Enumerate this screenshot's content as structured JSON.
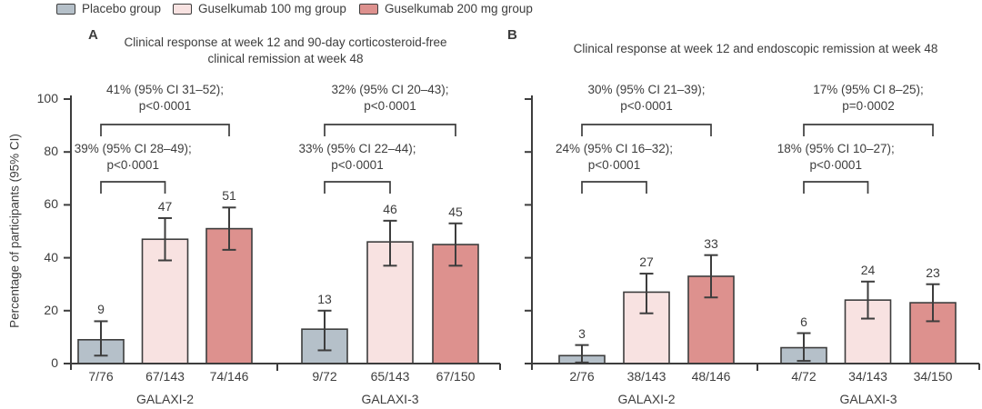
{
  "legend": [
    {
      "label": "Placebo group",
      "color": "#b5c0c9"
    },
    {
      "label": "Guselkumab 100 mg group",
      "color": "#f8e2e1"
    },
    {
      "label": "Guselkumab 200 mg group",
      "color": "#dd918e"
    }
  ],
  "ylabel": "Percentage of participants (95% CI)",
  "ink_color": "#3d3d3d",
  "chart_data": [
    {
      "panel": "A",
      "type": "bar",
      "title": "Clinical response at week 12 and 90-day corticosteroid-free clinical remission at week 48",
      "title_lines": [
        "Clinical response at week 12 and 90-day corticosteroid-free",
        "clinical remission at week 48"
      ],
      "ylim": [
        0,
        100
      ],
      "yticks": [
        0,
        20,
        40,
        60,
        80,
        100
      ],
      "series_names": [
        "Placebo group",
        "Guselkumab 100 mg group",
        "Guselkumab 200 mg group"
      ],
      "groups": [
        {
          "name": "GALAXI-2",
          "bars": [
            {
              "series": "Placebo group",
              "value": 9,
              "ci": [
                3,
                16
              ],
              "n": "7/76"
            },
            {
              "series": "Guselkumab 100 mg group",
              "value": 47,
              "ci": [
                39,
                55
              ],
              "n": "67/143"
            },
            {
              "series": "Guselkumab 200 mg group",
              "value": 51,
              "ci": [
                43,
                59
              ],
              "n": "74/146"
            }
          ],
          "comparisons": [
            {
              "label": "39% (95% CI 28–49);",
              "p": "p<0·0001",
              "from": 0,
              "to": 1,
              "level": "lower"
            },
            {
              "label": "41% (95% CI 31–52);",
              "p": "p<0·0001",
              "from": 0,
              "to": 2,
              "level": "upper"
            }
          ]
        },
        {
          "name": "GALAXI-3",
          "bars": [
            {
              "series": "Placebo group",
              "value": 13,
              "ci": [
                5,
                20
              ],
              "n": "9/72"
            },
            {
              "series": "Guselkumab 100 mg group",
              "value": 46,
              "ci": [
                37,
                54
              ],
              "n": "65/143"
            },
            {
              "series": "Guselkumab 200 mg group",
              "value": 45,
              "ci": [
                37,
                53
              ],
              "n": "67/150"
            }
          ],
          "comparisons": [
            {
              "label": "33% (95% CI 22–44);",
              "p": "p<0·0001",
              "from": 0,
              "to": 1,
              "level": "lower"
            },
            {
              "label": "32% (95% CI 20–43);",
              "p": "p<0·0001",
              "from": 0,
              "to": 2,
              "level": "upper"
            }
          ]
        }
      ]
    },
    {
      "panel": "B",
      "type": "bar",
      "title": "Clinical response at week 12 and endoscopic remission at week 48",
      "title_lines": [
        "Clinical response at week 12 and endoscopic remission at week 48"
      ],
      "ylim": [
        0,
        100
      ],
      "yticks": [
        0,
        20,
        40,
        60,
        80,
        100
      ],
      "series_names": [
        "Placebo group",
        "Guselkumab 100 mg group",
        "Guselkumab 200 mg group"
      ],
      "groups": [
        {
          "name": "GALAXI-2",
          "bars": [
            {
              "series": "Placebo group",
              "value": 3,
              "ci": [
                0.4,
                7
              ],
              "n": "2/76"
            },
            {
              "series": "Guselkumab 100 mg group",
              "value": 27,
              "ci": [
                19,
                34
              ],
              "n": "38/143"
            },
            {
              "series": "Guselkumab 200 mg group",
              "value": 33,
              "ci": [
                25,
                41
              ],
              "n": "48/146"
            }
          ],
          "comparisons": [
            {
              "label": "24% (95% CI 16–32);",
              "p": "p<0·0001",
              "from": 0,
              "to": 1,
              "level": "lower"
            },
            {
              "label": "30% (95% CI 21–39);",
              "p": "p<0·0001",
              "from": 0,
              "to": 2,
              "level": "upper"
            }
          ]
        },
        {
          "name": "GALAXI-3",
          "bars": [
            {
              "series": "Placebo group",
              "value": 6,
              "ci": [
                1,
                11.5
              ],
              "n": "4/72"
            },
            {
              "series": "Guselkumab 100 mg group",
              "value": 24,
              "ci": [
                17,
                31
              ],
              "n": "34/143"
            },
            {
              "series": "Guselkumab 200 mg group",
              "value": 23,
              "ci": [
                16,
                30
              ],
              "n": "34/150"
            }
          ],
          "comparisons": [
            {
              "label": "18% (95% CI 10–27);",
              "p": "p<0·0001",
              "from": 0,
              "to": 1,
              "level": "lower"
            },
            {
              "label": "17% (95% CI 8–25);",
              "p": "p=0·0002",
              "from": 0,
              "to": 2,
              "level": "upper"
            }
          ]
        }
      ]
    }
  ]
}
